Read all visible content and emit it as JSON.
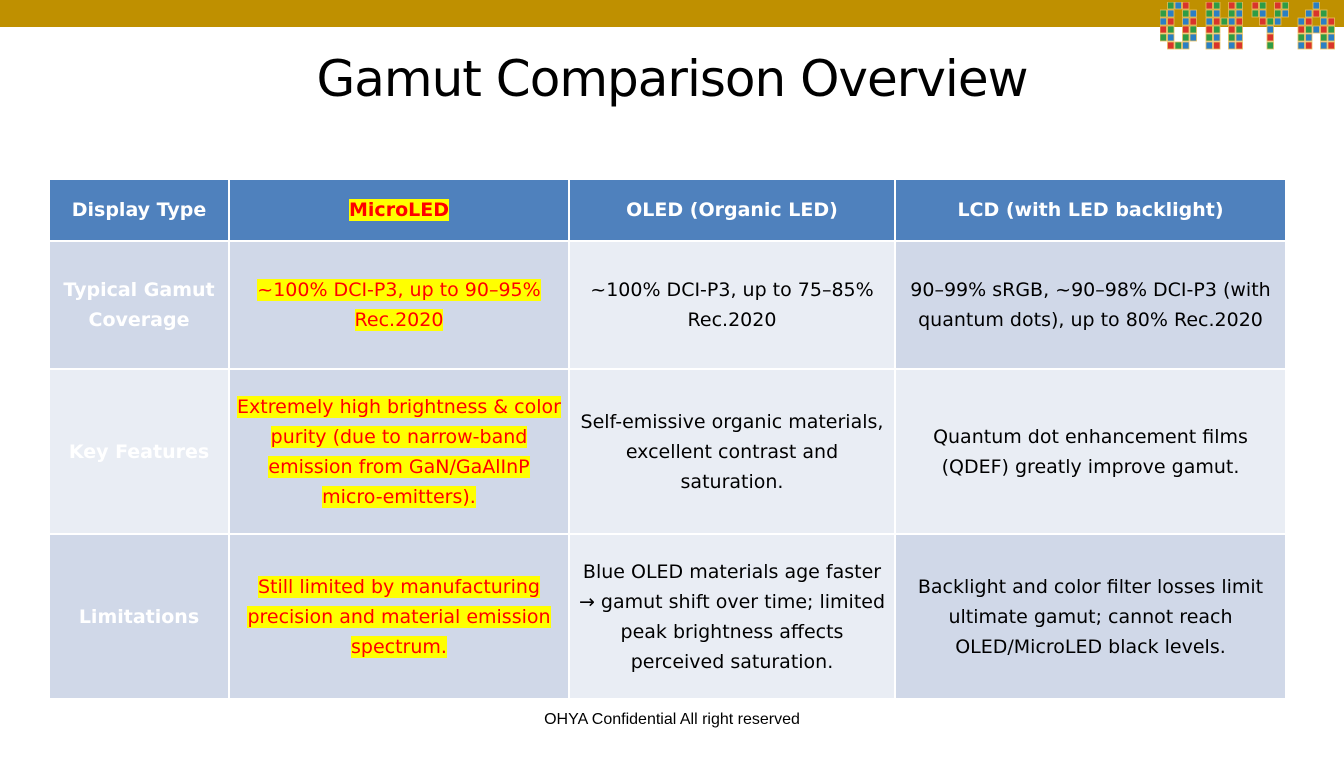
{
  "title": "Gamut Comparison Overview",
  "logo_text": "OHYA",
  "colors": {
    "topbar": "#bf9000",
    "header": "#4f81bd",
    "highlight": "#ffff00",
    "highlight_text": "#ff0000"
  },
  "table": {
    "headers": [
      "Display Type",
      "MicroLED",
      "OLED (Organic LED)",
      "LCD (with LED backlight)"
    ],
    "rows": [
      {
        "label": "Typical Gamut Coverage",
        "microled": "~100% DCI-P3, up to 90–95% Rec.2020",
        "oled": "~100% DCI-P3, up to 75–85% Rec.2020",
        "lcd": "90–99% sRGB, ~90–98% DCI-P3 (with quantum dots), up to 80% Rec.2020"
      },
      {
        "label": "Key Features",
        "microled": "Extremely high brightness & color purity (due to narrow-band emission from GaN/GaAlInP micro-emitters).",
        "oled": "Self-emissive organic materials, excellent contrast and saturation.",
        "lcd": "Quantum dot enhancement films (QDEF) greatly improve gamut."
      },
      {
        "label": "Limitations",
        "microled": "Still limited by manufacturing precision and material emission spectrum.",
        "oled": "Blue OLED materials age faster → gamut shift over time; limited peak brightness affects perceived saturation.",
        "lcd": "Backlight and color filter losses limit ultimate gamut; cannot reach OLED/MicroLED black levels."
      }
    ]
  },
  "footer": "OHYA Confidential All right reserved"
}
